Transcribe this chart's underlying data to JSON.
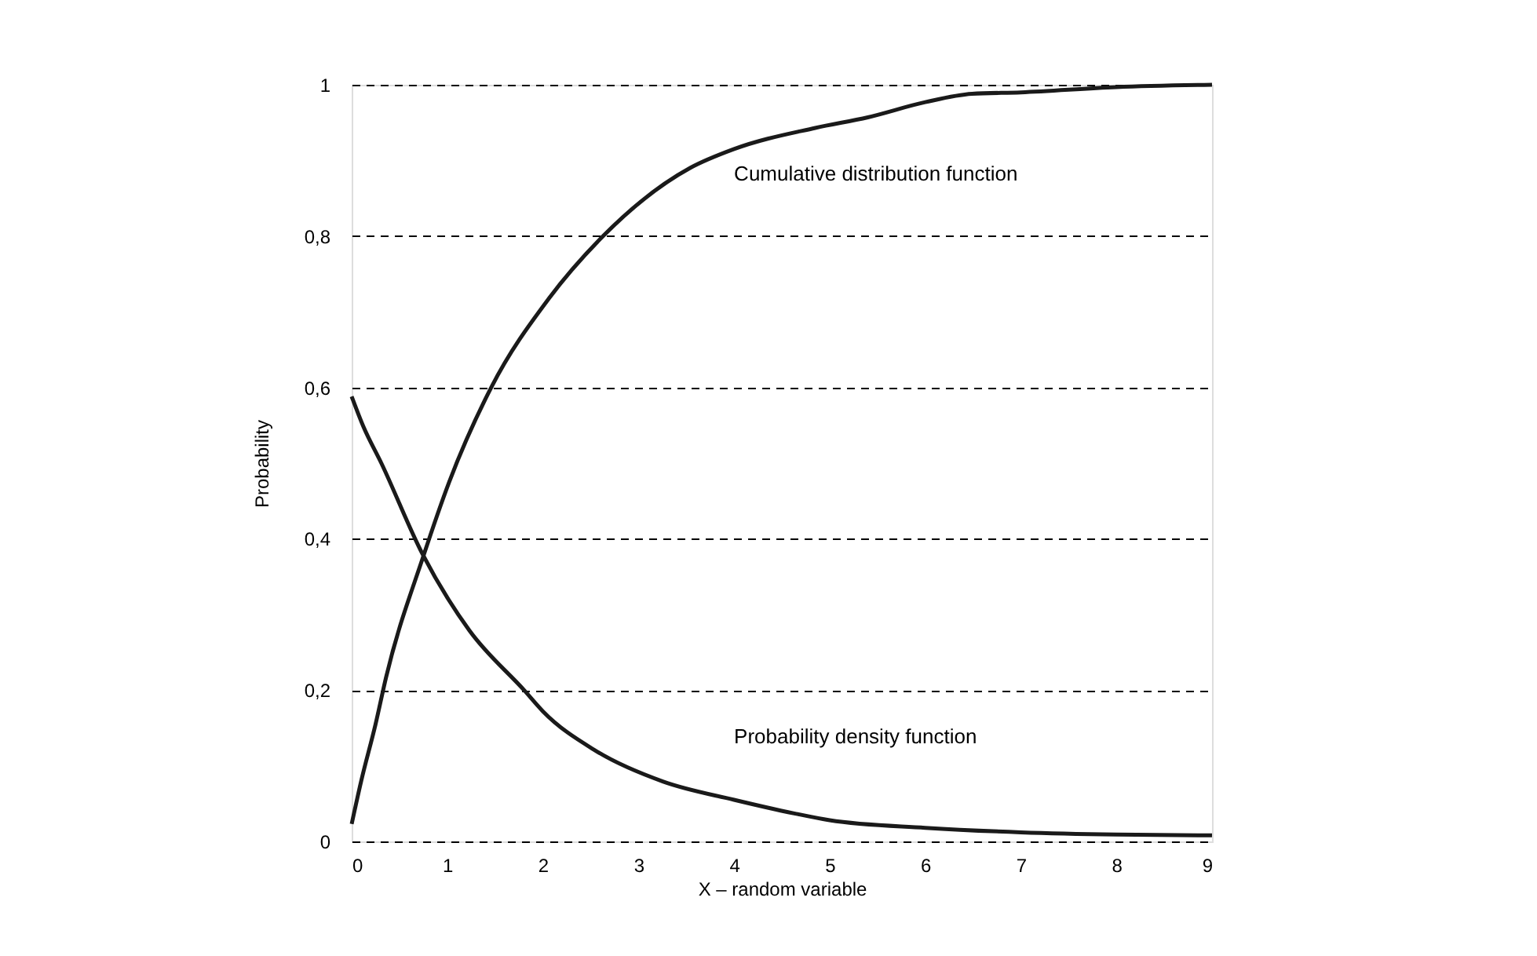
{
  "chart_data": {
    "type": "line",
    "xlabel": "X – random variable",
    "ylabel": "Probability",
    "xlim": [
      0,
      9
    ],
    "ylim": [
      0,
      1
    ],
    "xticks": [
      0,
      1,
      2,
      3,
      4,
      5,
      6,
      7,
      8,
      9
    ],
    "yticks": [
      0,
      {
        "value": 0.2,
        "label": "0,2"
      },
      {
        "value": 0.4,
        "label": "0,4"
      },
      {
        "value": 0.6,
        "label": "0,6"
      },
      {
        "value": 0.8,
        "label": "0,8"
      },
      1
    ],
    "grid": "y",
    "line_style": "solid",
    "marker": "none",
    "series": [
      {
        "name": "Cumulative distribution function",
        "color": "#1a1a1a",
        "x": [
          0,
          0.1,
          0.25,
          0.36,
          0.75,
          1.02,
          1.46,
          2.06,
          2.63,
          3.54,
          4.0,
          4.85,
          5.4,
          6.0,
          6.49,
          7.0,
          8.0,
          9.0
        ],
        "values": [
          0.023,
          0.08,
          0.155,
          0.217,
          0.377,
          0.475,
          0.6,
          0.717,
          0.8,
          0.89,
          0.915,
          0.943,
          0.957,
          0.977,
          0.988,
          0.99,
          0.997,
          1.0
        ]
      },
      {
        "name": "Probability density function",
        "color": "#1a1a1a",
        "x": [
          0,
          0.12,
          0.31,
          0.74,
          1.23,
          1.81,
          2.0,
          2.55,
          3.26,
          4.0,
          4.63,
          5.0,
          6.0,
          7.0,
          8.0,
          9.0
        ],
        "values": [
          0.588,
          0.549,
          0.5,
          0.38,
          0.279,
          0.199,
          0.172,
          0.12,
          0.079,
          0.055,
          0.037,
          0.028,
          0.018,
          0.012,
          0.009,
          0.008
        ]
      }
    ]
  }
}
